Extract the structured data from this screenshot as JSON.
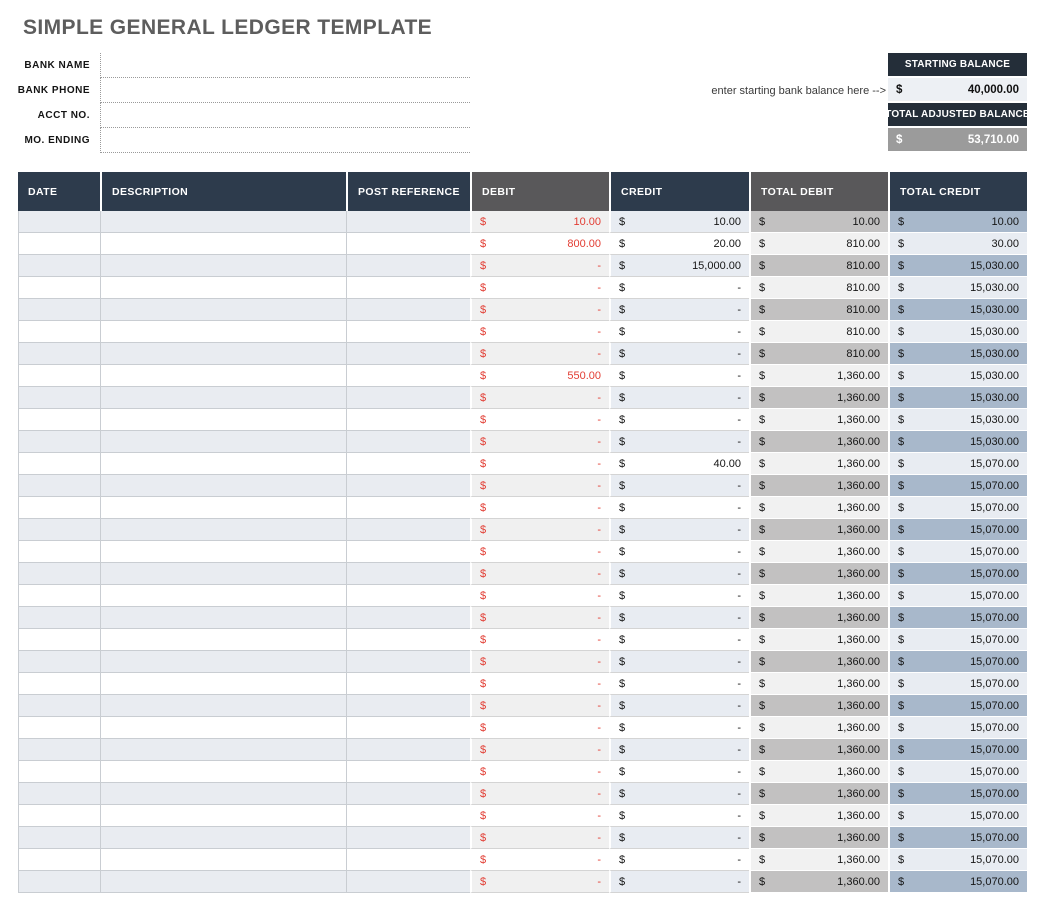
{
  "title": "SIMPLE GENERAL LEDGER TEMPLATE",
  "form": {
    "fields": [
      {
        "label": "BANK NAME",
        "value": ""
      },
      {
        "label": "BANK PHONE",
        "value": ""
      },
      {
        "label": "ACCT NO.",
        "value": ""
      },
      {
        "label": "MO. ENDING",
        "value": ""
      }
    ]
  },
  "balance_box": {
    "hint": "enter starting bank balance here -->",
    "starting_label": "STARTING BALANCE",
    "starting_currency": "$",
    "starting_value": "40,000.00",
    "adjusted_label": "TOTAL ADJUSTED BALANCE",
    "adjusted_currency": "$",
    "adjusted_value": "53,710.00"
  },
  "table": {
    "currency": "$",
    "columns": [
      "DATE",
      "DESCRIPTION",
      "POST REFERENCE",
      "DEBIT",
      "CREDIT",
      "TOTAL DEBIT",
      "TOTAL CREDIT"
    ],
    "rows": [
      {
        "date": "",
        "description": "",
        "post_reference": "",
        "debit": "10.00",
        "credit": "10.00",
        "total_debit": "10.00",
        "total_credit": "10.00"
      },
      {
        "date": "",
        "description": "",
        "post_reference": "",
        "debit": "800.00",
        "credit": "20.00",
        "total_debit": "810.00",
        "total_credit": "30.00"
      },
      {
        "date": "",
        "description": "",
        "post_reference": "",
        "debit": "-",
        "credit": "15,000.00",
        "total_debit": "810.00",
        "total_credit": "15,030.00"
      },
      {
        "date": "",
        "description": "",
        "post_reference": "",
        "debit": "-",
        "credit": "-",
        "total_debit": "810.00",
        "total_credit": "15,030.00"
      },
      {
        "date": "",
        "description": "",
        "post_reference": "",
        "debit": "-",
        "credit": "-",
        "total_debit": "810.00",
        "total_credit": "15,030.00"
      },
      {
        "date": "",
        "description": "",
        "post_reference": "",
        "debit": "-",
        "credit": "-",
        "total_debit": "810.00",
        "total_credit": "15,030.00"
      },
      {
        "date": "",
        "description": "",
        "post_reference": "",
        "debit": "-",
        "credit": "-",
        "total_debit": "810.00",
        "total_credit": "15,030.00"
      },
      {
        "date": "",
        "description": "",
        "post_reference": "",
        "debit": "550.00",
        "credit": "-",
        "total_debit": "1,360.00",
        "total_credit": "15,030.00"
      },
      {
        "date": "",
        "description": "",
        "post_reference": "",
        "debit": "-",
        "credit": "-",
        "total_debit": "1,360.00",
        "total_credit": "15,030.00"
      },
      {
        "date": "",
        "description": "",
        "post_reference": "",
        "debit": "-",
        "credit": "-",
        "total_debit": "1,360.00",
        "total_credit": "15,030.00"
      },
      {
        "date": "",
        "description": "",
        "post_reference": "",
        "debit": "-",
        "credit": "-",
        "total_debit": "1,360.00",
        "total_credit": "15,030.00"
      },
      {
        "date": "",
        "description": "",
        "post_reference": "",
        "debit": "-",
        "credit": "40.00",
        "total_debit": "1,360.00",
        "total_credit": "15,070.00"
      },
      {
        "date": "",
        "description": "",
        "post_reference": "",
        "debit": "-",
        "credit": "-",
        "total_debit": "1,360.00",
        "total_credit": "15,070.00"
      },
      {
        "date": "",
        "description": "",
        "post_reference": "",
        "debit": "-",
        "credit": "-",
        "total_debit": "1,360.00",
        "total_credit": "15,070.00"
      },
      {
        "date": "",
        "description": "",
        "post_reference": "",
        "debit": "-",
        "credit": "-",
        "total_debit": "1,360.00",
        "total_credit": "15,070.00"
      },
      {
        "date": "",
        "description": "",
        "post_reference": "",
        "debit": "-",
        "credit": "-",
        "total_debit": "1,360.00",
        "total_credit": "15,070.00"
      },
      {
        "date": "",
        "description": "",
        "post_reference": "",
        "debit": "-",
        "credit": "-",
        "total_debit": "1,360.00",
        "total_credit": "15,070.00"
      },
      {
        "date": "",
        "description": "",
        "post_reference": "",
        "debit": "-",
        "credit": "-",
        "total_debit": "1,360.00",
        "total_credit": "15,070.00"
      },
      {
        "date": "",
        "description": "",
        "post_reference": "",
        "debit": "-",
        "credit": "-",
        "total_debit": "1,360.00",
        "total_credit": "15,070.00"
      },
      {
        "date": "",
        "description": "",
        "post_reference": "",
        "debit": "-",
        "credit": "-",
        "total_debit": "1,360.00",
        "total_credit": "15,070.00"
      },
      {
        "date": "",
        "description": "",
        "post_reference": "",
        "debit": "-",
        "credit": "-",
        "total_debit": "1,360.00",
        "total_credit": "15,070.00"
      },
      {
        "date": "",
        "description": "",
        "post_reference": "",
        "debit": "-",
        "credit": "-",
        "total_debit": "1,360.00",
        "total_credit": "15,070.00"
      },
      {
        "date": "",
        "description": "",
        "post_reference": "",
        "debit": "-",
        "credit": "-",
        "total_debit": "1,360.00",
        "total_credit": "15,070.00"
      },
      {
        "date": "",
        "description": "",
        "post_reference": "",
        "debit": "-",
        "credit": "-",
        "total_debit": "1,360.00",
        "total_credit": "15,070.00"
      },
      {
        "date": "",
        "description": "",
        "post_reference": "",
        "debit": "-",
        "credit": "-",
        "total_debit": "1,360.00",
        "total_credit": "15,070.00"
      },
      {
        "date": "",
        "description": "",
        "post_reference": "",
        "debit": "-",
        "credit": "-",
        "total_debit": "1,360.00",
        "total_credit": "15,070.00"
      },
      {
        "date": "",
        "description": "",
        "post_reference": "",
        "debit": "-",
        "credit": "-",
        "total_debit": "1,360.00",
        "total_credit": "15,070.00"
      },
      {
        "date": "",
        "description": "",
        "post_reference": "",
        "debit": "-",
        "credit": "-",
        "total_debit": "1,360.00",
        "total_credit": "15,070.00"
      },
      {
        "date": "",
        "description": "",
        "post_reference": "",
        "debit": "-",
        "credit": "-",
        "total_debit": "1,360.00",
        "total_credit": "15,070.00"
      },
      {
        "date": "",
        "description": "",
        "post_reference": "",
        "debit": "-",
        "credit": "-",
        "total_debit": "1,360.00",
        "total_credit": "15,070.00"
      },
      {
        "date": "",
        "description": "",
        "post_reference": "",
        "debit": "-",
        "credit": "-",
        "total_debit": "1,360.00",
        "total_credit": "15,070.00"
      }
    ]
  },
  "colors": {
    "header_navy": "#2d3b4c",
    "header_gray": "#59585a",
    "balance_header_navy": "#242e39",
    "starting_value_bg": "#edf0f4",
    "adjusted_value_bg": "#9b9b9b",
    "debit_text_red": "#e23d33",
    "total_debit_stripe": "#c2c1c1",
    "total_credit_stripe": "#a8b8cb"
  }
}
